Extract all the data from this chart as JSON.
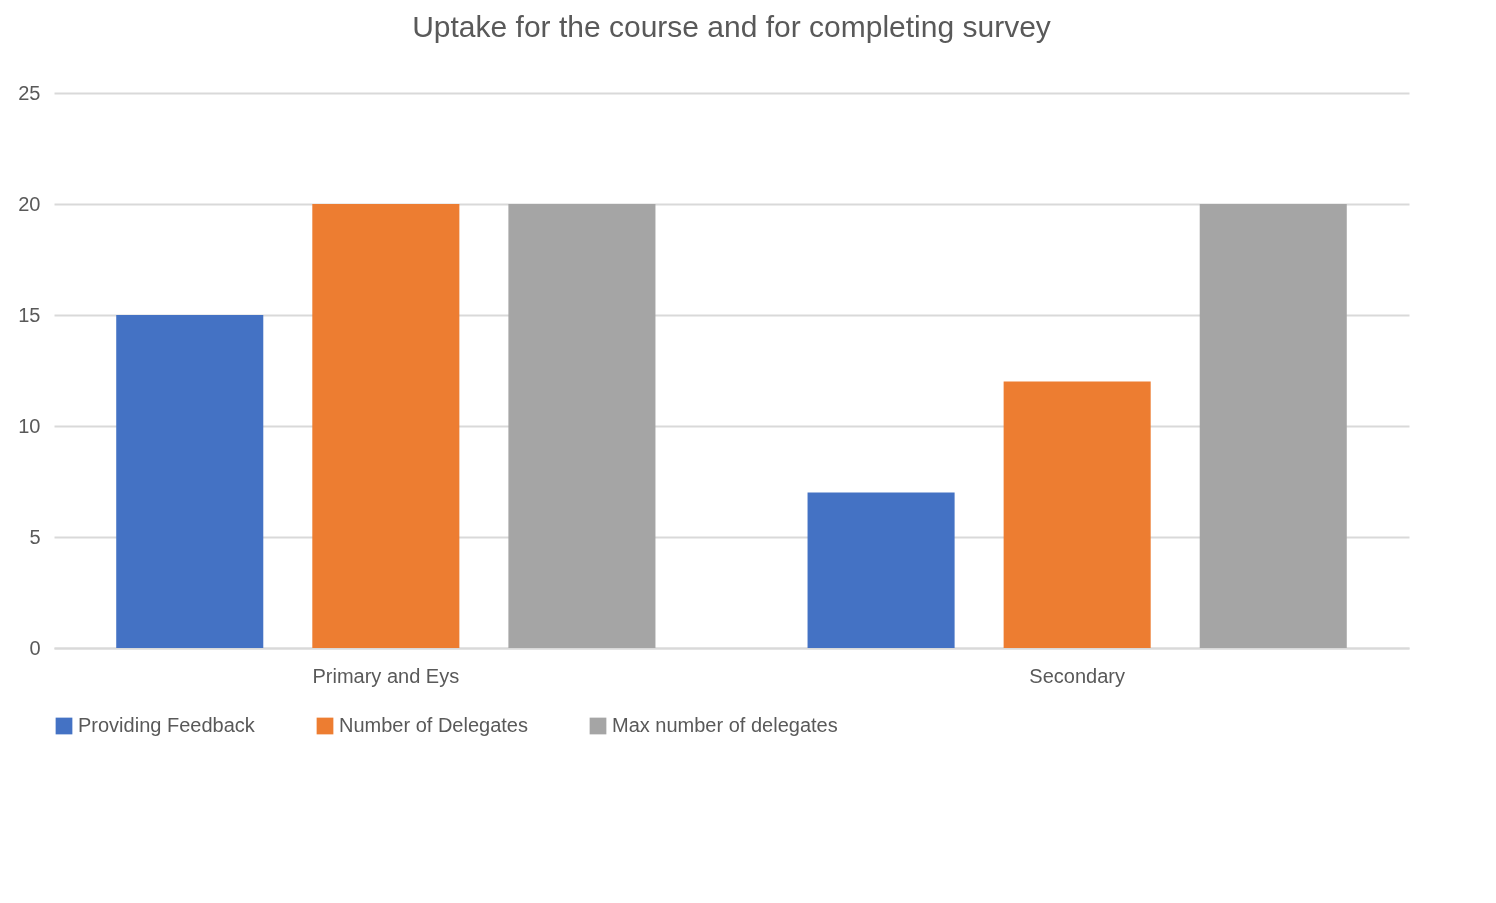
{
  "chart_data": {
    "type": "bar",
    "title": "Uptake for the course and for completing survey",
    "categories": [
      "Primary and Eys",
      "Secondary"
    ],
    "series": [
      {
        "name": "Providing Feedback",
        "color": "#4472c4",
        "values": [
          15,
          7
        ]
      },
      {
        "name": "Number of Delegates",
        "color": "#ed7d31",
        "values": [
          20,
          12
        ]
      },
      {
        "name": "Max number of delegates",
        "color": "#a5a5a5",
        "values": [
          20,
          20
        ]
      }
    ],
    "ylim": [
      0,
      25
    ],
    "yticks": [
      0,
      5,
      10,
      15,
      20,
      25
    ],
    "grid": "y",
    "legend": "bottom"
  }
}
